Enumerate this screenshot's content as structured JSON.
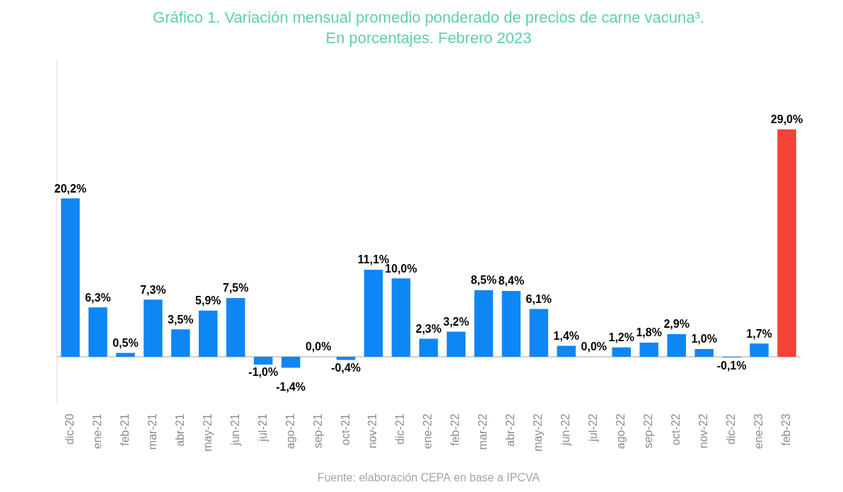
{
  "chart_data": {
    "type": "bar",
    "title": "Gráfico 1. Variación mensual promedio ponderado de precios de carne vacuna³.",
    "subtitle": "En porcentajes. Febrero 2023",
    "source": "Fuente: elaboración CEPA en base a IPCVA",
    "categories": [
      "dic-20",
      "ene-21",
      "feb-21",
      "mar-21",
      "abr-21",
      "may-21",
      "jun-21",
      "jul-21",
      "ago-21",
      "sep-21",
      "oct-21",
      "nov-21",
      "dic-21",
      "ene-22",
      "feb-22",
      "mar-22",
      "abr-22",
      "may-22",
      "jun-22",
      "jul-22",
      "ago-22",
      "sep-22",
      "oct-22",
      "nov-22",
      "dic-22",
      "ene-23",
      "feb-23"
    ],
    "values": [
      20.2,
      6.3,
      0.5,
      7.3,
      3.5,
      5.9,
      7.5,
      -1.0,
      -1.4,
      0.0,
      -0.4,
      11.1,
      10.0,
      2.3,
      3.2,
      8.5,
      8.4,
      6.1,
      1.4,
      0.0,
      1.2,
      1.8,
      2.9,
      1.0,
      -0.1,
      1.7,
      29.0
    ],
    "value_labels": [
      "20,2%",
      "6,3%",
      "0,5%",
      "7,3%",
      "3,5%",
      "5,9%",
      "7,5%",
      "-1,0%",
      "-1,4%",
      "0,0%",
      "-0,4%",
      "11,1%",
      "10,0%",
      "2,3%",
      "3,2%",
      "8,5%",
      "8,4%",
      "6,1%",
      "1,4%",
      "0,0%",
      "1,2%",
      "1,8%",
      "2,9%",
      "1,0%",
      "-0,1%",
      "1,7%",
      "29,0%"
    ],
    "colors": [
      "#0f86f5",
      "#0f86f5",
      "#0f86f5",
      "#0f86f5",
      "#0f86f5",
      "#0f86f5",
      "#0f86f5",
      "#0f86f5",
      "#0f86f5",
      "#0f86f5",
      "#0f86f5",
      "#0f86f5",
      "#0f86f5",
      "#0f86f5",
      "#0f86f5",
      "#0f86f5",
      "#0f86f5",
      "#0f86f5",
      "#0f86f5",
      "#0f86f5",
      "#0f86f5",
      "#0f86f5",
      "#0f86f5",
      "#0f86f5",
      "#0f86f5",
      "#0f86f5",
      "#f44336"
    ],
    "ylim": [
      -6,
      38
    ],
    "grid": false,
    "data_labels": true,
    "tick_labels": "x"
  }
}
